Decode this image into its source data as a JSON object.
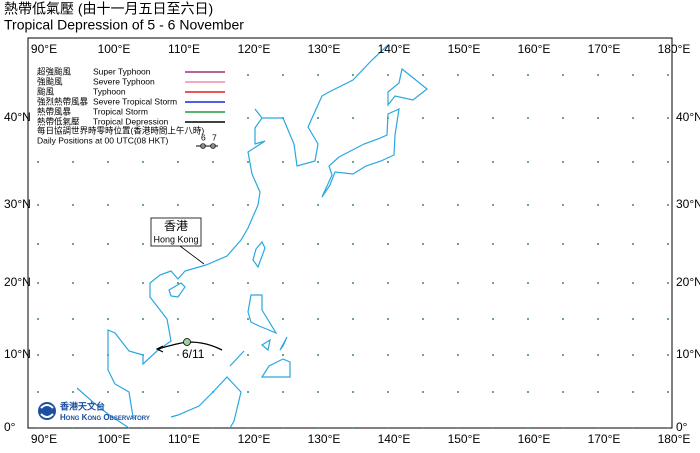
{
  "title_zh": "熱帶低氣壓 (由十一月五日至六日)",
  "title_en": "Tropical Depression of 5 - 6 November",
  "longitude_labels": [
    "90°E",
    "100°E",
    "110°E",
    "120°E",
    "130°E",
    "140°E",
    "150°E",
    "160°E",
    "170°E",
    "180°E"
  ],
  "latitude_labels": [
    "40°N",
    "30°N",
    "20°N",
    "10°N",
    "0°"
  ],
  "legend": {
    "items": [
      {
        "zh": "超強颱風",
        "en": "Super Typhoon",
        "color": "#a0307a"
      },
      {
        "zh": "強颱風",
        "en": "Severe Typhoon",
        "color": "#f08cb4"
      },
      {
        "zh": "颱風",
        "en": "Typhoon",
        "color": "#e0201c"
      },
      {
        "zh": "強烈熱帶風暴",
        "en": "Severe Tropical Storm",
        "color": "#1a2ad8"
      },
      {
        "zh": "熱帶風暴",
        "en": "Tropical Storm",
        "color": "#1f9a3a"
      },
      {
        "zh": "熱帶低氣壓",
        "en": "Tropical Depression",
        "color": "#000000"
      }
    ],
    "note_zh": "每日協調世界時零時位置(香港時間上午八時)",
    "note_en": "Daily Positions at 00 UTC(08 HKT)",
    "example_days": [
      "6",
      "7"
    ]
  },
  "place_label": {
    "zh": "香港",
    "en": "Hong Kong"
  },
  "track_labels": [
    "6/11"
  ],
  "logo": {
    "zh": "香港天文台",
    "en": "Hong Kong Observatory"
  }
}
